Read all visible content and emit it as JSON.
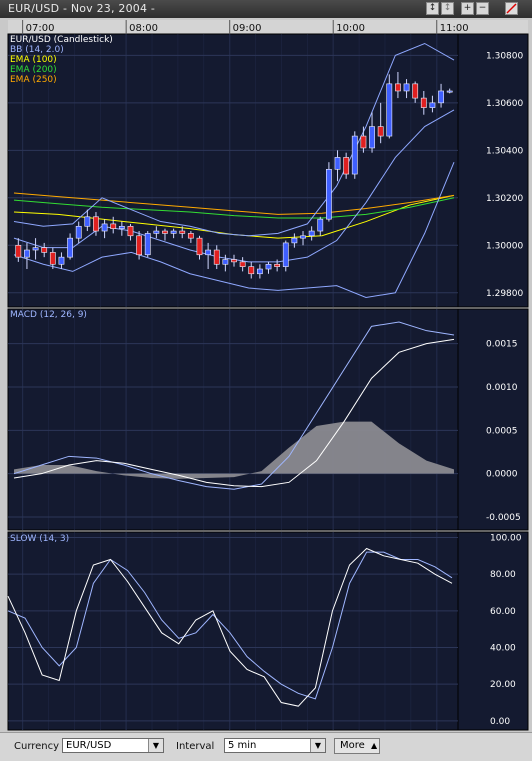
{
  "window": {
    "title": "EUR/USD - Nov 23, 2004 -"
  },
  "toolbar": {
    "buttons": [
      "scroll-icon",
      "fit-icon",
      "zoom-in-icon",
      "zoom-out-icon",
      "draw-line-icon"
    ]
  },
  "price_panel": {
    "indicator_labels": [
      {
        "text": "EUR/USD (Candlestick)",
        "color": "#ffffff"
      },
      {
        "text": "BB (14, 2.0)",
        "color": "#9fb6ff"
      },
      {
        "text": "EMA (100)",
        "color": "#ffff00"
      },
      {
        "text": "EMA (200)",
        "color": "#33dd33"
      },
      {
        "text": "EMA (250)",
        "color": "#ffaa00"
      }
    ]
  },
  "macd_panel": {
    "label": "MACD (12, 26, 9)"
  },
  "slow_panel": {
    "label": "SLOW (14, 3)"
  },
  "controls": {
    "currency_label": "Currency",
    "currency_value": "EUR/USD",
    "interval_label": "Interval",
    "interval_value": "5 min",
    "more_label": "More"
  },
  "chart_data": [
    {
      "type": "candlestick",
      "title": "EUR/USD (Candlestick)",
      "x_ticks": [
        "07:00",
        "08:00",
        "09:00",
        "10:00",
        "11:00"
      ],
      "y_ticks": [
        "1.30800",
        "1.30600",
        "1.30400",
        "1.30200",
        "1.30000",
        "1.29800"
      ],
      "ylim": [
        1.2974,
        1.3089
      ],
      "candles": [
        {
          "o": 1.3,
          "h": 1.3003,
          "l": 1.2993,
          "c": 1.2995
        },
        {
          "o": 1.2995,
          "h": 1.3001,
          "l": 1.299,
          "c": 1.2998
        },
        {
          "o": 1.2998,
          "h": 1.3003,
          "l": 1.2994,
          "c": 1.2999
        },
        {
          "o": 1.2999,
          "h": 1.3001,
          "l": 1.2995,
          "c": 1.2997
        },
        {
          "o": 1.2997,
          "h": 1.2999,
          "l": 1.299,
          "c": 1.2992
        },
        {
          "o": 1.2992,
          "h": 1.2997,
          "l": 1.299,
          "c": 1.2995
        },
        {
          "o": 1.2995,
          "h": 1.3005,
          "l": 1.2994,
          "c": 1.3003
        },
        {
          "o": 1.3003,
          "h": 1.301,
          "l": 1.3001,
          "c": 1.3008
        },
        {
          "o": 1.3008,
          "h": 1.3015,
          "l": 1.3006,
          "c": 1.3012
        },
        {
          "o": 1.3012,
          "h": 1.3014,
          "l": 1.3004,
          "c": 1.3006
        },
        {
          "o": 1.3006,
          "h": 1.3011,
          "l": 1.3003,
          "c": 1.3009
        },
        {
          "o": 1.3009,
          "h": 1.3012,
          "l": 1.3005,
          "c": 1.3007
        },
        {
          "o": 1.3007,
          "h": 1.301,
          "l": 1.3004,
          "c": 1.3008
        },
        {
          "o": 1.3008,
          "h": 1.3009,
          "l": 1.3002,
          "c": 1.3004
        },
        {
          "o": 1.3004,
          "h": 1.3006,
          "l": 1.2994,
          "c": 1.2996
        },
        {
          "o": 1.2996,
          "h": 1.3006,
          "l": 1.2995,
          "c": 1.3005
        },
        {
          "o": 1.3005,
          "h": 1.3008,
          "l": 1.3003,
          "c": 1.3006
        },
        {
          "o": 1.3006,
          "h": 1.3007,
          "l": 1.3002,
          "c": 1.3005
        },
        {
          "o": 1.3005,
          "h": 1.3007,
          "l": 1.3003,
          "c": 1.3006
        },
        {
          "o": 1.3006,
          "h": 1.3008,
          "l": 1.3003,
          "c": 1.3005
        },
        {
          "o": 1.3005,
          "h": 1.3006,
          "l": 1.3001,
          "c": 1.3003
        },
        {
          "o": 1.3003,
          "h": 1.3004,
          "l": 1.2994,
          "c": 1.2996
        },
        {
          "o": 1.2996,
          "h": 1.3001,
          "l": 1.299,
          "c": 1.2998
        },
        {
          "o": 1.2998,
          "h": 1.3,
          "l": 1.299,
          "c": 1.2992
        },
        {
          "o": 1.2992,
          "h": 1.2996,
          "l": 1.2989,
          "c": 1.2994
        },
        {
          "o": 1.2994,
          "h": 1.2996,
          "l": 1.2991,
          "c": 1.2993
        },
        {
          "o": 1.2993,
          "h": 1.2995,
          "l": 1.2989,
          "c": 1.2991
        },
        {
          "o": 1.2991,
          "h": 1.2993,
          "l": 1.2986,
          "c": 1.2988
        },
        {
          "o": 1.2988,
          "h": 1.2992,
          "l": 1.2986,
          "c": 1.299
        },
        {
          "o": 1.299,
          "h": 1.2993,
          "l": 1.2988,
          "c": 1.2992
        },
        {
          "o": 1.2992,
          "h": 1.2994,
          "l": 1.2989,
          "c": 1.2991
        },
        {
          "o": 1.2991,
          "h": 1.3002,
          "l": 1.2989,
          "c": 1.3001
        },
        {
          "o": 1.3001,
          "h": 1.3005,
          "l": 1.2999,
          "c": 1.3003
        },
        {
          "o": 1.3003,
          "h": 1.3006,
          "l": 1.3,
          "c": 1.3004
        },
        {
          "o": 1.3004,
          "h": 1.3008,
          "l": 1.3002,
          "c": 1.3006
        },
        {
          "o": 1.3006,
          "h": 1.3012,
          "l": 1.3004,
          "c": 1.3011
        },
        {
          "o": 1.3011,
          "h": 1.3035,
          "l": 1.301,
          "c": 1.3032
        },
        {
          "o": 1.3032,
          "h": 1.304,
          "l": 1.3027,
          "c": 1.3037
        },
        {
          "o": 1.3037,
          "h": 1.3039,
          "l": 1.3028,
          "c": 1.303
        },
        {
          "o": 1.303,
          "h": 1.3048,
          "l": 1.3028,
          "c": 1.3046
        },
        {
          "o": 1.3046,
          "h": 1.305,
          "l": 1.3039,
          "c": 1.3041
        },
        {
          "o": 1.3041,
          "h": 1.3056,
          "l": 1.3039,
          "c": 1.305
        },
        {
          "o": 1.305,
          "h": 1.306,
          "l": 1.3043,
          "c": 1.3046
        },
        {
          "o": 1.3046,
          "h": 1.3072,
          "l": 1.3045,
          "c": 1.3068
        },
        {
          "o": 1.3068,
          "h": 1.3073,
          "l": 1.3062,
          "c": 1.3065
        },
        {
          "o": 1.3065,
          "h": 1.307,
          "l": 1.3062,
          "c": 1.3068
        },
        {
          "o": 1.3068,
          "h": 1.3069,
          "l": 1.306,
          "c": 1.3062
        },
        {
          "o": 1.3062,
          "h": 1.3065,
          "l": 1.3055,
          "c": 1.3058
        },
        {
          "o": 1.3058,
          "h": 1.3063,
          "l": 1.3056,
          "c": 1.306
        },
        {
          "o": 1.306,
          "h": 1.3068,
          "l": 1.3058,
          "c": 1.3065
        },
        {
          "o": 1.3065,
          "h": 1.3066,
          "l": 1.3064,
          "c": 1.3065
        }
      ],
      "series": [
        {
          "name": "EMA (100)",
          "color": "#ffff00",
          "values": [
            1.3014,
            1.3013,
            1.3011,
            1.3009,
            1.3007,
            1.30045,
            1.3003,
            1.3004,
            1.301,
            1.3017,
            1.3021
          ]
        },
        {
          "name": "EMA (200)",
          "color": "#33dd33",
          "values": [
            1.3019,
            1.30175,
            1.3016,
            1.3015,
            1.3014,
            1.30125,
            1.30115,
            1.30115,
            1.3013,
            1.3016,
            1.302
          ]
        },
        {
          "name": "EMA (250)",
          "color": "#ffaa00",
          "values": [
            1.3022,
            1.30205,
            1.3019,
            1.30175,
            1.3016,
            1.30145,
            1.3013,
            1.30135,
            1.30155,
            1.3018,
            1.3021
          ]
        },
        {
          "name": "BB upper",
          "color": "#8fa8ff",
          "values": [
            1.301,
            1.3008,
            1.3009,
            1.302,
            1.3015,
            1.301,
            1.3008,
            1.3005,
            1.3004,
            1.3005,
            1.3009,
            1.3025,
            1.305,
            1.308,
            1.3085,
            1.3078
          ]
        },
        {
          "name": "BB middle",
          "color": "#8fa8ff",
          "values": [
            1.3003,
            1.2999,
            1.2999,
            1.3008,
            1.3006,
            1.3002,
            1.2998,
            1.2995,
            1.2993,
            1.2993,
            1.2995,
            1.3002,
            1.3018,
            1.3037,
            1.305,
            1.3057
          ]
        },
        {
          "name": "BB lower",
          "color": "#8fa8ff",
          "values": [
            1.2996,
            1.2992,
            1.2989,
            1.2995,
            1.2997,
            1.2993,
            1.2988,
            1.2985,
            1.2982,
            1.2981,
            1.2982,
            1.2983,
            1.2978,
            1.298,
            1.3005,
            1.3035
          ]
        }
      ]
    },
    {
      "type": "line",
      "title": "MACD (12, 26, 9)",
      "y_ticks": [
        "0.0015",
        "0.0010",
        "0.0005",
        "0.0000",
        "-0.0005"
      ],
      "ylim": [
        -0.00065,
        0.0019
      ],
      "series": [
        {
          "name": "MACD",
          "color": "#9fb6ff",
          "values": [
            0.0,
            0.0001,
            0.0002,
            0.00018,
            0.0001,
            0.0,
            -8e-05,
            -0.00015,
            -0.00018,
            -0.00012,
            0.0002,
            0.0007,
            0.0012,
            0.0017,
            0.00175,
            0.00165,
            0.0016
          ]
        },
        {
          "name": "Signal",
          "color": "#ffffff",
          "values": [
            -5e-05,
            0.0,
            0.0001,
            0.00015,
            0.00012,
            5e-05,
            -2e-05,
            -0.0001,
            -0.00014,
            -0.00015,
            -0.0001,
            0.00015,
            0.0006,
            0.0011,
            0.0014,
            0.0015,
            0.00155
          ]
        },
        {
          "name": "Histogram",
          "color": "#8a8a90",
          "values": [
            5e-05,
            0.0001,
            0.0001,
            3e-05,
            -2e-05,
            -5e-05,
            -6e-05,
            -5e-05,
            -4e-05,
            3e-05,
            0.0003,
            0.00055,
            0.0006,
            0.0006,
            0.00035,
            0.00015,
            5e-05
          ]
        }
      ]
    },
    {
      "type": "line",
      "title": "SLOW (14, 3)",
      "y_ticks": [
        "100.00",
        "80.00",
        "60.00",
        "40.00",
        "20.00",
        "0.00"
      ],
      "ylim": [
        -5,
        103
      ],
      "series": [
        {
          "name": "%K",
          "color": "#ffffff",
          "values": [
            68,
            48,
            25,
            22,
            60,
            85,
            88,
            76,
            62,
            48,
            42,
            55,
            60,
            38,
            28,
            24,
            10,
            8,
            18,
            60,
            85,
            94,
            90,
            88,
            86,
            80,
            75
          ]
        },
        {
          "name": "%D",
          "color": "#9fb6ff",
          "values": [
            60,
            56,
            40,
            30,
            40,
            75,
            88,
            82,
            70,
            55,
            45,
            48,
            58,
            48,
            35,
            27,
            20,
            15,
            12,
            40,
            75,
            92,
            92,
            88,
            88,
            84,
            78
          ]
        }
      ]
    }
  ]
}
